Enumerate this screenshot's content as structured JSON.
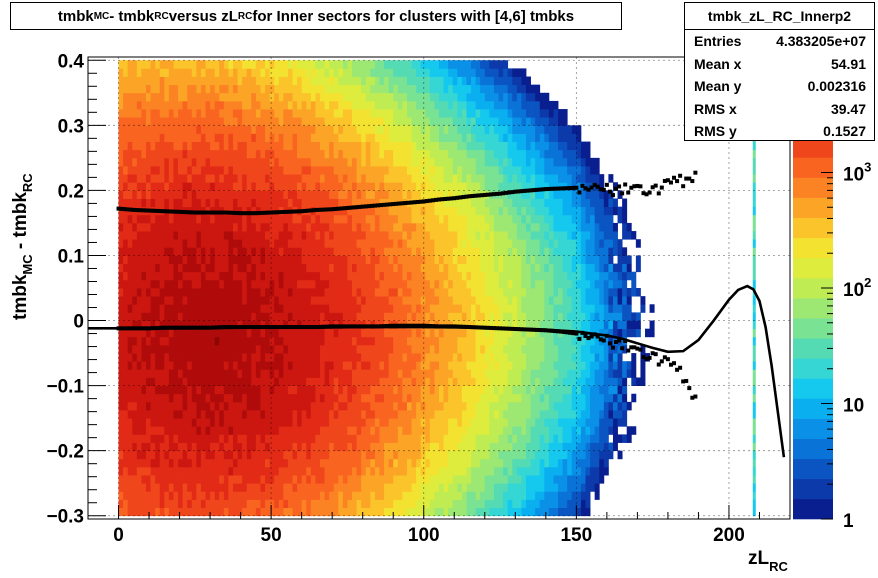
{
  "title": {
    "p1": "tmbk",
    "s1": "MC",
    "p2": " - tmbk",
    "s2": "RC",
    "p3": " versus zL",
    "s3": "RC",
    "p4": " for Inner sectors for clusters with [4,6] tmbks"
  },
  "stats": {
    "name": "tmbk_zL_RC_Innerp2",
    "rows": [
      {
        "label": "Entries",
        "value": "4.383205e+07"
      },
      {
        "label": "Mean x",
        "value": "54.91"
      },
      {
        "label": "Mean y",
        "value": "0.002316"
      },
      {
        "label": "RMS x",
        "value": "39.47"
      },
      {
        "label": "RMS y",
        "value": "0.1527"
      }
    ]
  },
  "axes": {
    "x_title": "zL",
    "x_title_sub": "RC",
    "y_title_a": "tmbk",
    "y_title_a_sub": "MC",
    "y_title_b": " - tmbk",
    "y_title_b_sub": "RC"
  },
  "chart_data": {
    "type": "heatmap",
    "xlim": [
      -10,
      220
    ],
    "ylim": [
      -0.305,
      0.405
    ],
    "x_ticks": [
      0,
      50,
      100,
      150,
      200
    ],
    "x_tick_labels": [
      "0",
      "50",
      "100",
      "150",
      "200"
    ],
    "y_ticks": [
      -0.3,
      -0.2,
      -0.1,
      0,
      0.1,
      0.2,
      0.3,
      0.4
    ],
    "y_tick_labels": [
      "−0.3",
      "−0.2",
      "−0.1",
      "0",
      "0.1",
      "0.2",
      "0.3",
      "0.4"
    ],
    "z_scale": "log",
    "z_ticks": [
      1,
      10,
      100,
      1000
    ],
    "z_tick_labels": [
      {
        "base": "1",
        "exp": ""
      },
      {
        "base": "10",
        "exp": ""
      },
      {
        "base": "10",
        "exp": "2"
      },
      {
        "base": "10",
        "exp": "3"
      }
    ],
    "palette": [
      "#0a1f8f",
      "#0c3aaa",
      "#0a55c2",
      "#0a73d8",
      "#0a90e6",
      "#0aaff0",
      "#15c8ee",
      "#35d6d4",
      "#55dbb4",
      "#7ae293",
      "#9de873",
      "#c0ec53",
      "#ddec3d",
      "#f4e231",
      "#fac42a",
      "#fba426",
      "#fb8323",
      "#f96420",
      "#f0461c",
      "#e22b17",
      "#cc1711",
      "#b00b0b",
      "#8e0505"
    ],
    "grid": true,
    "density_model": {
      "x_range": [
        0,
        195
      ],
      "y_range": [
        -0.3,
        0.4
      ],
      "peak_x": 30,
      "peak_y": -0.015,
      "peak_log_counts": 3.75
    },
    "profile_upper": {
      "name": "",
      "x": [
        0,
        5,
        10,
        15,
        20,
        25,
        30,
        35,
        40,
        45,
        50,
        55,
        60,
        65,
        70,
        75,
        80,
        85,
        90,
        95,
        100,
        105,
        110,
        115,
        120,
        125,
        130,
        135,
        140,
        145,
        150,
        155,
        160,
        165,
        170,
        175,
        180,
        185,
        190
      ],
      "y": [
        0.172,
        0.17,
        0.169,
        0.168,
        0.167,
        0.166,
        0.166,
        0.166,
        0.165,
        0.165,
        0.166,
        0.167,
        0.168,
        0.17,
        0.171,
        0.173,
        0.175,
        0.177,
        0.179,
        0.181,
        0.183,
        0.186,
        0.188,
        0.191,
        0.193,
        0.195,
        0.198,
        0.2,
        0.202,
        0.203,
        0.204,
        0.205,
        0.202,
        0.2,
        0.205,
        0.2,
        0.21,
        0.215,
        0.225
      ]
    },
    "profile_lower": {
      "name": "",
      "x": [
        0,
        5,
        10,
        15,
        20,
        25,
        30,
        35,
        40,
        45,
        50,
        55,
        60,
        65,
        70,
        75,
        80,
        85,
        90,
        95,
        100,
        105,
        110,
        115,
        120,
        125,
        130,
        135,
        140,
        145,
        150,
        155,
        160,
        165,
        170,
        175,
        180,
        185,
        190
      ],
      "y": [
        -0.012,
        -0.012,
        -0.012,
        -0.011,
        -0.011,
        -0.011,
        -0.011,
        -0.01,
        -0.01,
        -0.01,
        -0.01,
        -0.01,
        -0.01,
        -0.01,
        -0.009,
        -0.009,
        -0.009,
        -0.009,
        -0.008,
        -0.008,
        -0.008,
        -0.009,
        -0.009,
        -0.01,
        -0.011,
        -0.012,
        -0.013,
        -0.014,
        -0.015,
        -0.017,
        -0.02,
        -0.024,
        -0.03,
        -0.038,
        -0.045,
        -0.055,
        -0.065,
        -0.085,
        -0.13
      ]
    },
    "fit_curve": {
      "name": "",
      "x": [
        -10,
        0,
        20,
        40,
        60,
        80,
        100,
        120,
        140,
        150,
        160,
        165,
        170,
        175,
        180,
        185,
        190,
        195,
        200,
        203,
        206,
        208,
        210,
        212,
        214,
        216,
        218
      ],
      "y": [
        -0.012,
        -0.012,
        -0.012,
        -0.011,
        -0.011,
        -0.01,
        -0.01,
        -0.011,
        -0.014,
        -0.017,
        -0.023,
        -0.028,
        -0.035,
        -0.042,
        -0.048,
        -0.047,
        -0.03,
        0.0,
        0.032,
        0.047,
        0.053,
        0.048,
        0.03,
        -0.01,
        -0.07,
        -0.14,
        -0.21
      ]
    }
  }
}
